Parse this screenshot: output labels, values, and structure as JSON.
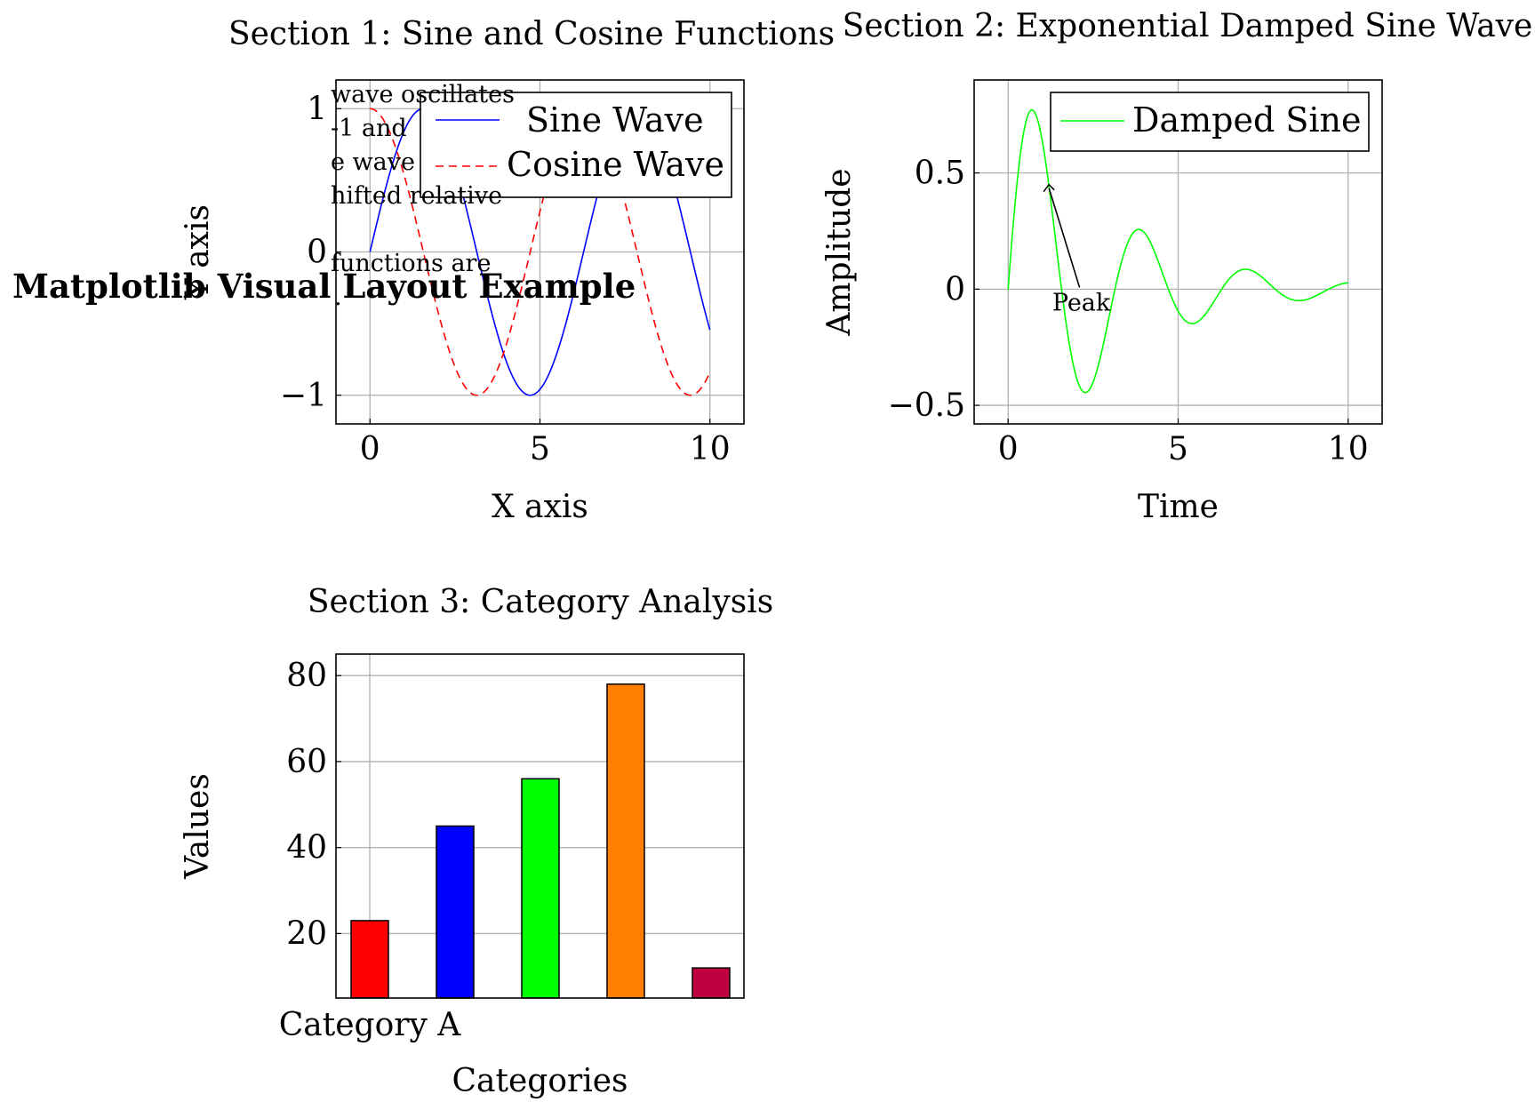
{
  "figure": {
    "suptitle": "Matplotlib Visual Layout Example",
    "side_note_lines": [
      "wave oscillates",
      " -1 and",
      "e wave",
      "hifted relative",
      "",
      "functions are",
      "."
    ]
  },
  "colors": {
    "sine": "#0000ff",
    "cosine": "#ff0000",
    "damped": "#00ff00",
    "grid": "#b0b0b0"
  },
  "chart_data": [
    {
      "type": "line",
      "title": "Section 1: Sine and Cosine Functions",
      "xlabel": "X axis",
      "ylabel": "Y axis",
      "xlim": [
        -1,
        11
      ],
      "ylim": [
        -1.2,
        1.2
      ],
      "xticks": [
        0,
        5,
        10
      ],
      "xtick_labels": [
        "0",
        "5",
        "10"
      ],
      "yticks": [
        -1,
        0,
        1
      ],
      "ytick_labels": [
        "−1",
        "0",
        "1"
      ],
      "grid": true,
      "legend_position": "top-right",
      "series": [
        {
          "name": "Sine Wave",
          "function": "sin(x)",
          "x_range": [
            0,
            10
          ],
          "color": "#0000ff",
          "style": "solid"
        },
        {
          "name": "Cosine Wave",
          "function": "cos(x)",
          "x_range": [
            0,
            10
          ],
          "color": "#ff0000",
          "style": "dashed"
        }
      ]
    },
    {
      "type": "line",
      "title": "Section 2: Exponential Damped Sine Wave",
      "xlabel": "Time",
      "ylabel": "Amplitude",
      "xlim": [
        -1,
        11
      ],
      "ylim": [
        -0.58,
        0.9
      ],
      "xticks": [
        0,
        5,
        10
      ],
      "xtick_labels": [
        "0",
        "5",
        "10"
      ],
      "yticks": [
        -0.5,
        0,
        0.5
      ],
      "ytick_labels": [
        "−0.5",
        "0",
        "0.5"
      ],
      "grid": true,
      "legend_position": "top-right",
      "series": [
        {
          "name": "Damped Sine",
          "function": "exp(-0.35x)·sin(2x)",
          "x_range": [
            0,
            10
          ],
          "color": "#00ff00",
          "style": "solid"
        }
      ],
      "annotation": {
        "text": "Peak",
        "point": [
          1.2,
          0.45
        ],
        "text_at": [
          2.1,
          0.0
        ]
      }
    },
    {
      "type": "bar",
      "title": "Section 3: Category Analysis",
      "xlabel": "Categories",
      "ylabel": "Values",
      "ylim": [
        5,
        85
      ],
      "yticks": [
        20,
        40,
        60,
        80
      ],
      "ytick_labels": [
        "20",
        "40",
        "60",
        "80"
      ],
      "grid": true,
      "categories": [
        "Category A",
        "",
        "",
        "",
        ""
      ],
      "values": [
        23,
        45,
        56,
        78,
        12
      ],
      "bar_colors": [
        "#ff0000",
        "#0000ff",
        "#00ff00",
        "#ff8000",
        "#bf0040"
      ]
    }
  ]
}
